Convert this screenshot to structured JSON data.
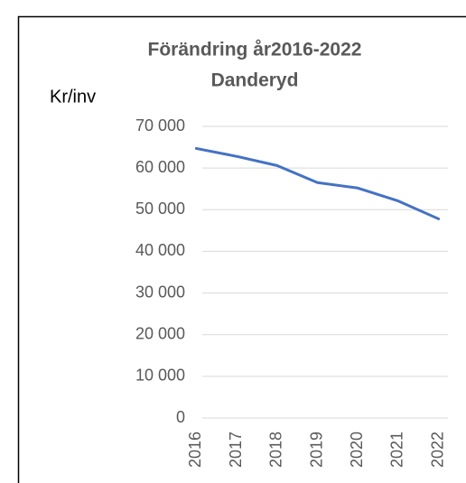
{
  "chart_data": {
    "type": "line",
    "title": [
      "Förändring år2016-2022",
      "Danderyd"
    ],
    "y_label": "Kr/inv",
    "categories": [
      "2016",
      "2017",
      "2018",
      "2019",
      "2020",
      "2021",
      "2022"
    ],
    "series": [
      {
        "name": "Danderyd",
        "color": "#4472c4",
        "values": [
          64700,
          62800,
          60600,
          56500,
          55200,
          52100,
          47800
        ]
      }
    ],
    "ylim": [
      0,
      70000
    ],
    "yticks": [
      {
        "value": 0,
        "label": "0"
      },
      {
        "value": 10000,
        "label": "10 000"
      },
      {
        "value": 20000,
        "label": "20 000"
      },
      {
        "value": 30000,
        "label": "30 000"
      },
      {
        "value": 40000,
        "label": "40 000"
      },
      {
        "value": 50000,
        "label": "50 000"
      },
      {
        "value": 60000,
        "label": "60 000"
      },
      {
        "value": 70000,
        "label": "70 000"
      }
    ],
    "grid": true,
    "legend": false
  }
}
